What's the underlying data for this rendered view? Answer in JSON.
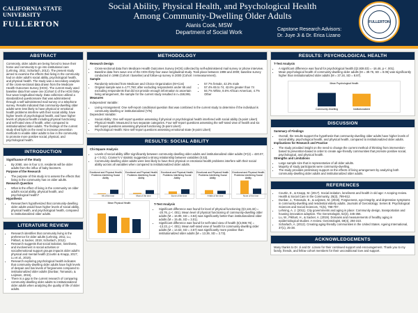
{
  "header": {
    "logo_line1": "CALIFORNIA STATE UNIVERSITY",
    "logo_line2": "FULLERTON",
    "title_line1": "Social Ability, Physical Health, and Psychological Health",
    "title_line2": "Among Community-Dwelling Older Adults",
    "author": "Alanis Cook, MSW",
    "department": "Department of Social Work",
    "advisors_title": "Capstone Research Advisors:",
    "advisors_names": "Dr. Juye Ji & Dr. Erica Lizano",
    "seal_text": "FULLERTON",
    "seal_year": "1957"
  },
  "colors": {
    "navy": "#0d2b4e",
    "gold": "#f5a623"
  },
  "left": {
    "abstract_title": "ABSTRACT",
    "abstract_text": "Commonly, older adults are being forced to leave their home and community to go into institutional care (Lehning, 2011; Scharlach, 2012). The present study aimed to examine the effects that living in the community had on older adult's social ability, psychological health, and physical health. The study was a secondary analysis of the cross-sectional data drawn from the Medicare Health Outcomes Survey (HOS). The current study used baseline data from wave one (Cohort I) of the HOS thirty-four wave longitudinal study. Data collection utilized a standardized questionnaire that was administered through a self-administered mail survey or a telephone survey. Results indicated that community-dwelling older adults were less likely to have physical or emotional health problems interfere with their social ability, have higher levels of psychological health, and have higher levels of physical health including physical functioning and self-rated view of health, when compared to institutionalized older adults. The findings of the current study shed light on the need to increase prevention methods to enable older adults to live in the community to promote more positive social, physical, and psychological health.",
    "intro_title": "INTRODUCTION",
    "sig_title": "Significance of the Study",
    "sig_text": "By 2060, one in four U.S. residents will be older adults from the influx of baby boomers.",
    "purpose_title": "Purpose of the Research",
    "purpose_text": "The purpose of this study is to assess the effects that living in the community has on older adults.",
    "rq_title": "Research Question",
    "rq_text": "What is the effect of living in the community on older adult's social ability, physical health, and psychological health?",
    "hyp_title": "Hypothesis",
    "hyp_text": "Researchers hypothesized that community-dwelling older adults would have higher levels of social ability, physical health, and psychological health, compared to institutionalized older adults.",
    "lit_title": "LITERATURE REVIEW",
    "lit_1": "Research identifies that community living is the preference for older adults (Lehning, 2011; Lu, Pikhart, & Sacker, 2019; Scharlach, 2012).",
    "lit_2": "Research suggests that social isolation, loneliness, and involvement in social activities or social/emotional support groups impacts older adult's physical and mental health (Courtin & Knapp, 2017; Lu et al., 2019).",
    "lit_3": "Research exploring psychological health indicates that community-dwelling older adults have high levels of despair and low levels of forgiveness compared to institutionalized older adults (Dunbar, Tomasulo, & Leijssen, 2016).",
    "lit_4": "There is a gap in the current research of comparing community-dwelling older adults to institutionalized older adults when analyzing the quality of life of older adults."
  },
  "middle": {
    "method_title": "METHODOLOGY",
    "design_title": "Research Design",
    "design_1": "Cross-sectional data from Medicare Health Outcomes Survey (HOS) collected by self-administered mail survey or phone interview.",
    "design_2": "Baseline data from wave one of the HOS thirty-four wave longitudinal study. Took place between 1998 and 2000; baseline survey conducted in 1998 (Cohort I baseline) and follow-up survey in 2000 (Cohort I remeasurement).",
    "sample_title": "Sample",
    "sample_1": "Randomly selected from Medicare and Choice Organization (M+Cos)",
    "sample_2": "Original sample was n=177,760; after excluding respondents under 65 and excluding respondents that did not provide enough information to ascertain living arrangement, the sample for the current study resulted in n=159,991.",
    "stat_1": "57.7% female, 42.3% male",
    "stat_2": "57.4% 65 to 74, 42.6% greater than 74",
    "stat_3": "84.7% White, 8.6% African American, 4.7% Other",
    "measures_title": "Measures",
    "iv_title": "Independent Variable:",
    "iv_text": "Living Arrangement: One self-report conditional question that was combined in the current study to determine if the individual is community-dwelling or institutionalized (Y/N)",
    "dv_title": "Dependent Variable:",
    "dv_1": "Social Ability: One self-report question assessing if physical or psychological health interfered with social ability (5-point Likert)",
    "dv_2": "Physical Health: Measured in two separate categories. Four self-report questions assessing the self-rated view of health and six self-report questions assessing physical functioning (5-point Likert)",
    "dv_3": "Psychological Health: Nine self-report questions assessing emotional state (6-point Likert)",
    "social_title": "RESULTS: SOCIAL ABILITY",
    "chi_title": "Chi-Square Analysis",
    "chi_1": "Levels of social ability differ significantly between community-dwelling older adults and institutionalized older adults (X²(4) = 420.07, p < 0.01). Cramer's V statistic suggested a strong relationship between variables (0.53).",
    "chi_2": "Community-dwelling older adults were less likely to have their physical or emotional health problems interfere with their social ability across all variables when compared to institutionalized older adults.",
    "chart_titles": [
      "Emotional and Physical Health Problems Interfering Social Ability",
      "Emotional and Physical Health Problems Interfering Social Ability",
      "Emotional and Physical Health Problems Interfering Social Ability",
      "Emotional and Physical Health Problems Interfering Social Ability",
      "Emotional and Physical Health Problems Interfering Social Ability"
    ],
    "ttest_title": "T-Test Analysis",
    "t_1": "Significant difference was found for level of physical functioning (t(3,115.32) = -20.76, p < .001). Mean level of physical functioning of community-dwelling older adults (M = 16.99, SD = 3.84) was significantly better than institutionalized older adults (M = 15.45, SD = 3.01).",
    "t_2": "Significant difference was found for self-rated view of health (t(3,068.76) = -13.23, p < .001). Mean self-rated view of health for community-dwelling older adults (M = 14.53, SD = 3.57) was significantly more positive than institutionalized older adults (M = 13.39, SD = 3.73).",
    "mpf_label": "Mean Physical Health"
  },
  "right": {
    "psych_title": "RESULTS: PSYCHOLOGICAL HEALTH",
    "ttest_title": "T-Test Analysis",
    "psych_1": "A significant difference was found for psychological health (t(2,938.03) = -16.46, p < .001).",
    "psych_2": "Mean psychological health of community-dwelling older adults (M = 39.76, SD = 8.06) was significantly higher than institutionalized older adults (M = 37.34, SD = 8.87).",
    "chart_title": "Mean Psychological Health",
    "psych_values": [
      39.76,
      37.34
    ],
    "psych_labels": [
      "Community-Dwelling",
      "Institutionalized"
    ],
    "disc_title": "DISCUSSION",
    "sum_title": "Summary of Findings",
    "sum_text": "Overall, the results support the hypothesis that community-dwelling older adults have higher levels of social ability, psychological health, and physical health, compared to institutionalized older adults.",
    "impl_title": "Implications for Research and Practice",
    "impl_text": "The study provided insight on the need to change the current method of thinking from intervention-based to prevention-based in order to create age-friendly communities that promote positive social, psychological, and physical health.",
    "str_title": "Strengths and Limitations",
    "str_1": "Large sample size that is representative of all older adults.",
    "str_2": "Majority of study participants were community-dwelling.",
    "str_3": "The study provides preliminary support on the effects of living arrangement by analyzing both community-dwelling older adults and institutionalized older adults.",
    "ref_title": "REFERENCES",
    "ref_1": "Courtin, E., & Knapp, M. (2017). Social isolation, loneliness and health in old age: A scoping review. Health & Social Care in the Community, 25(3), 799-812.",
    "ref_2": "Dunbar, J., Tomasulo, E., & Leijssen, M. (2016). Forgiveness, ego-integrity, and depressive symptoms in community-dwelling and residential elderly adults. Journals of Gerontology: Series B: Psychological Sciences and Social Sciences, 71(5), 788-797.",
    "ref_3": "Lehning, A. J. (2011). City governments and aging in place: Community design, transportation and housing innovation adoption. The Gerontologist, 52(3), 345-356.",
    "ref_4": "Lu, W., Pikhart, H., & Sacker, A. (2019). Domains and measurements of healthy aging in epidemiological studies: A review. Gerontologist, 59(4), 294-310.",
    "ref_5": "Scharlach, A. (2012). Creating aging-friendly communities in the United States. Ageing International, 37(1), 25-38.",
    "ack_title": "ACKNOWLEDGEMENTS",
    "ack_text": "Many thanks to Dr. Ji and Dr. Lizano for their continued support and encouragement. Thank you to my family, friends, and fellow cohort members for their unconditional love and support."
  },
  "chart_data": [
    {
      "type": "bar",
      "title": "Emotional and Physical Health Problems Interfering Social Ability",
      "categories": [
        "Community",
        "Institutional"
      ],
      "series": [
        {
          "name": "All of the time",
          "values": [
            3,
            20
          ]
        }
      ]
    },
    {
      "type": "bar",
      "title": "Emotional and Physical Health Problems Interfering Social Ability",
      "categories": [
        "Community",
        "Institutional"
      ],
      "series": [
        {
          "name": "Most of the time",
          "values": [
            5,
            18
          ]
        }
      ]
    },
    {
      "type": "bar",
      "title": "Emotional and Physical Health Problems Interfering Social Ability",
      "categories": [
        "Community",
        "Institutional"
      ],
      "series": [
        {
          "name": "Some of the time",
          "values": [
            12,
            22
          ]
        }
      ]
    },
    {
      "type": "bar",
      "title": "Emotional and Physical Health Problems Interfering Social Ability",
      "categories": [
        "Community",
        "Institutional"
      ],
      "series": [
        {
          "name": "A little of the time",
          "values": [
            18,
            15
          ]
        }
      ]
    },
    {
      "type": "bar",
      "title": "Emotional and Physical Health Problems Interfering Social Ability",
      "categories": [
        "Community",
        "Institutional"
      ],
      "series": [
        {
          "name": "None of the time",
          "values": [
            62,
            25
          ]
        }
      ]
    }
  ]
}
